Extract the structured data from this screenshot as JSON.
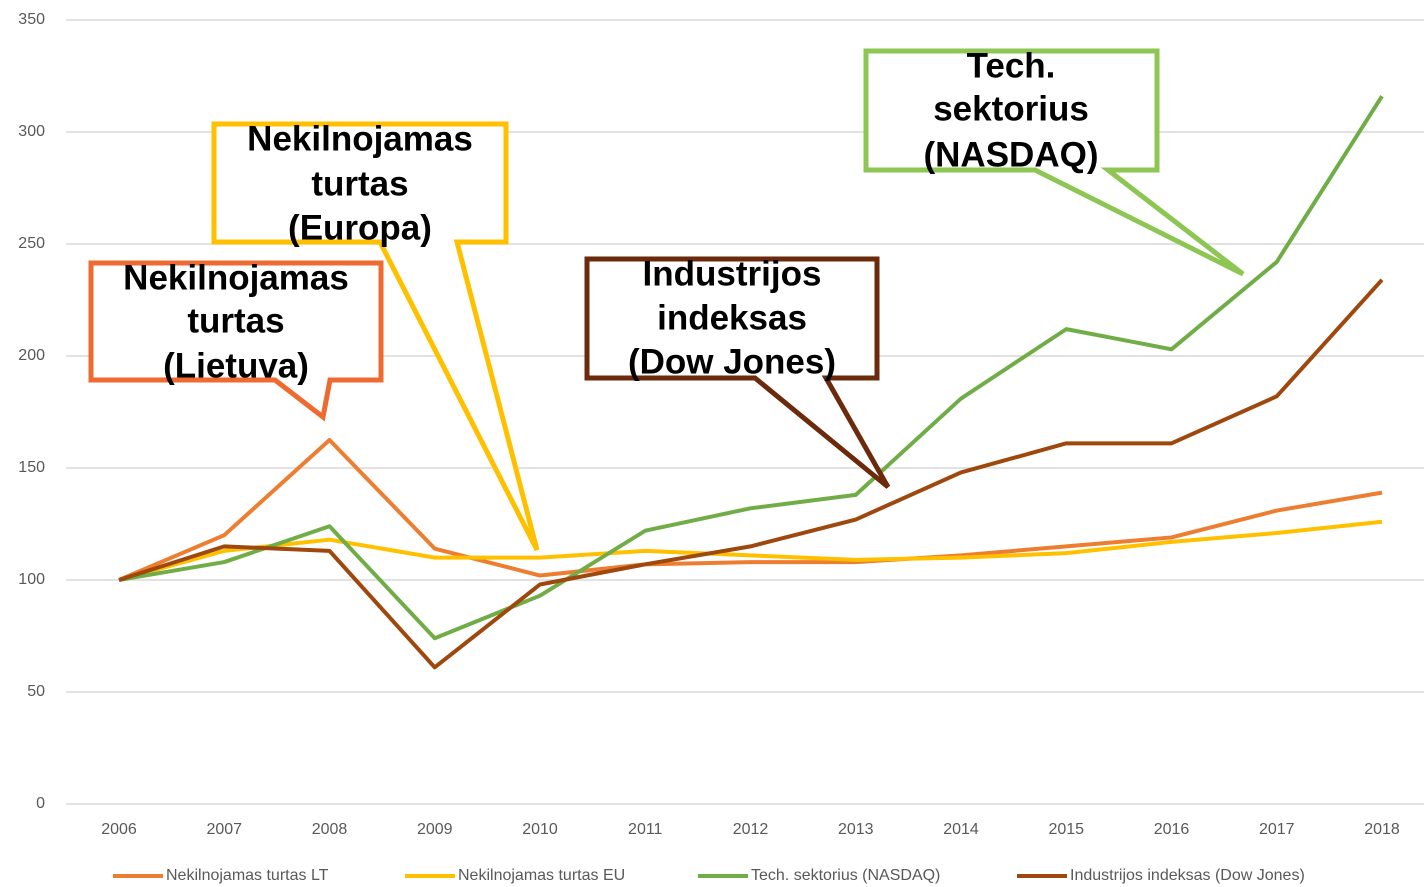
{
  "chart_data": {
    "type": "line",
    "categories": [
      "2006",
      "2007",
      "2008",
      "2009",
      "2010",
      "2011",
      "2012",
      "2013",
      "2014",
      "2015",
      "2016",
      "2017",
      "2018"
    ],
    "series": [
      {
        "name": "Nekilnojamas turtas LT",
        "color": "#ed7d31",
        "values": [
          100,
          120,
          162.5,
          114,
          102,
          107,
          108,
          108,
          111,
          115,
          119,
          131,
          139
        ]
      },
      {
        "name": "Nekilnojamas turtas EU",
        "color": "#ffc000",
        "values": [
          100,
          113,
          118,
          110,
          110,
          113,
          111,
          109,
          110,
          112,
          117,
          121,
          126
        ]
      },
      {
        "name": "Tech. sektorius (NASDAQ)",
        "color": "#70ad47",
        "values": [
          100,
          108,
          124,
          74,
          93,
          122,
          132,
          138,
          181,
          212,
          203,
          242,
          316
        ]
      },
      {
        "name": "Industrijos indeksas (Dow Jones)",
        "color": "#9e480e",
        "values": [
          100,
          115,
          113,
          61,
          98,
          107,
          115,
          127,
          148,
          161,
          161,
          182,
          234
        ]
      }
    ],
    "ylim": [
      0,
      350
    ],
    "yticks": [
      0,
      50,
      100,
      150,
      200,
      250,
      300,
      350
    ],
    "grid": true,
    "legend": "bottom",
    "annotations": [
      {
        "lines": [
          "Nekilnojamas",
          "turtas",
          "(Lietuva)"
        ],
        "color": "#ee6a30"
      },
      {
        "lines": [
          "Nekilnojamas",
          "turtas",
          "(Europa)"
        ],
        "color": "#ffc000"
      },
      {
        "lines": [
          "Industrijos",
          "indeksas",
          "(Dow Jones)"
        ],
        "color": "#6b2a0c"
      },
      {
        "lines": [
          "Tech.",
          "sektorius",
          "(NASDAQ)"
        ],
        "color": "#8dc653"
      }
    ]
  }
}
